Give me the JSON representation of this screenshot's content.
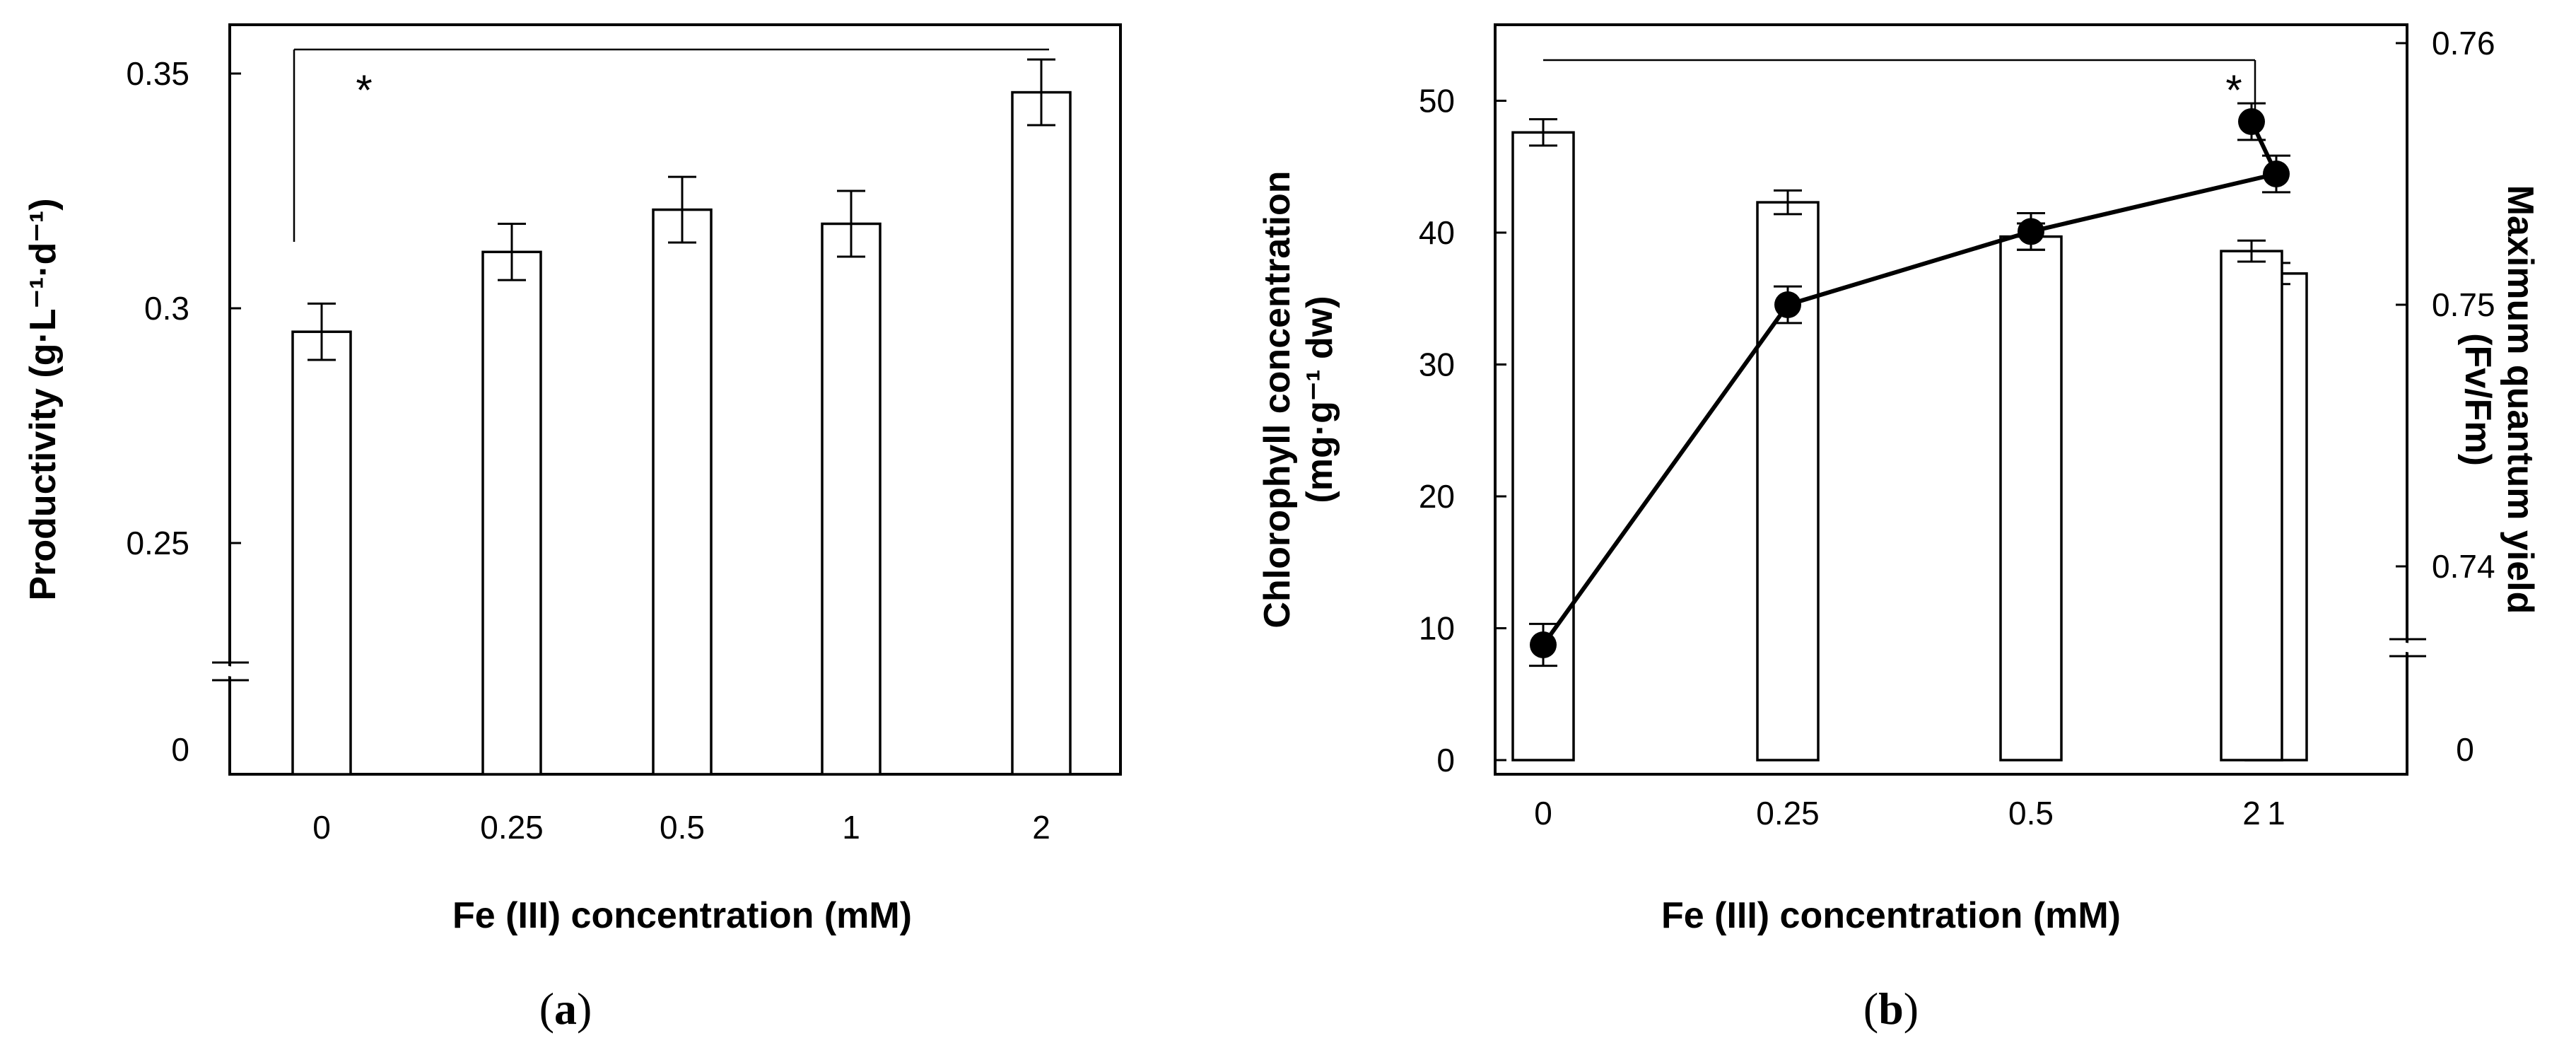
{
  "chart_data": [
    {
      "type": "bar",
      "panel_label": "a",
      "xlabel": "Fe (III) concentration (mM)",
      "ylabel": "Productivity (g·L⁻¹·d⁻¹)",
      "categories": [
        "0",
        "0.25",
        "0.5",
        "1",
        "2"
      ],
      "values": [
        0.295,
        0.312,
        0.321,
        0.318,
        0.346
      ],
      "errors": [
        0.006,
        0.006,
        0.007,
        0.007,
        0.007
      ],
      "ylim": [
        0.22,
        0.36
      ],
      "yticks": [
        {
          "value": 0.25,
          "label": "0.25"
        },
        {
          "value": 0.3,
          "label": "0.3"
        },
        {
          "value": 0.35,
          "label": "0.35"
        }
      ],
      "axis_break_zero_label": "0",
      "significance": {
        "from": "0",
        "to": "2",
        "label": "*"
      }
    },
    {
      "type": "bar+line",
      "panel_label": "b",
      "xlabel": "Fe (III) concentration (mM)",
      "ylabel": "Chlorophyll concentration (mg·g⁻¹ dw)",
      "y2label": "Maximum quantum yield (Fv/Fm)",
      "categories": [
        "0",
        "0.25",
        "0.5",
        "1",
        "2"
      ],
      "series": [
        {
          "name": "Chlorophyll concentration",
          "kind": "bar",
          "axis": "left",
          "values": [
            47.6,
            42.3,
            39.7,
            36.9,
            38.6
          ],
          "errors": [
            1.0,
            0.9,
            1.0,
            0.8,
            0.8
          ]
        },
        {
          "name": "Maximum quantum yield",
          "kind": "line",
          "axis": "right",
          "values": [
            0.737,
            0.75,
            0.7528,
            0.755,
            0.757
          ],
          "errors": [
            0.0008,
            0.0007,
            0.0007,
            0.0007,
            0.0007
          ]
        }
      ],
      "ylim": [
        0,
        55
      ],
      "yticks": [
        {
          "value": 0,
          "label": "0"
        },
        {
          "value": 10,
          "label": "10"
        },
        {
          "value": 20,
          "label": "20"
        },
        {
          "value": 30,
          "label": "30"
        },
        {
          "value": 40,
          "label": "40"
        },
        {
          "value": 50,
          "label": "50"
        }
      ],
      "y2lim": [
        0.733,
        0.76
      ],
      "y2ticks": [
        {
          "value": 0.74,
          "label": "0.74"
        },
        {
          "value": 0.75,
          "label": "0.75"
        },
        {
          "value": 0.76,
          "label": "0.76"
        }
      ],
      "axis_break_zero_label": "0",
      "significance": {
        "from": "0",
        "to": "2",
        "label": "*"
      }
    }
  ]
}
